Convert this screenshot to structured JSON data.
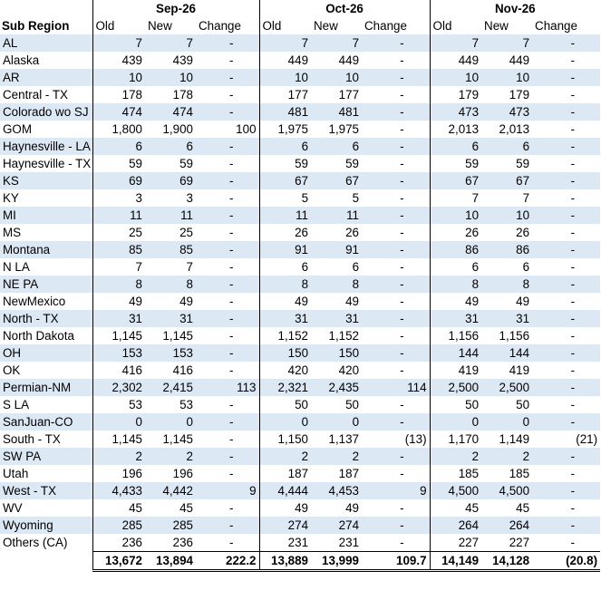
{
  "header": {
    "sub_region_label": "Sub Region",
    "months": [
      "Sep-26",
      "Oct-26",
      "Nov-26"
    ],
    "columns": [
      "Old",
      "New",
      "Change"
    ]
  },
  "rows": [
    {
      "region": "AL",
      "sep": [
        "7",
        "7",
        "-"
      ],
      "oct": [
        "7",
        "7",
        "-"
      ],
      "nov": [
        "7",
        "7",
        "-"
      ]
    },
    {
      "region": "Alaska",
      "sep": [
        "439",
        "439",
        "-"
      ],
      "oct": [
        "449",
        "449",
        "-"
      ],
      "nov": [
        "449",
        "449",
        "-"
      ]
    },
    {
      "region": "AR",
      "sep": [
        "10",
        "10",
        "-"
      ],
      "oct": [
        "10",
        "10",
        "-"
      ],
      "nov": [
        "10",
        "10",
        "-"
      ]
    },
    {
      "region": "Central - TX",
      "sep": [
        "178",
        "178",
        "-"
      ],
      "oct": [
        "177",
        "177",
        "-"
      ],
      "nov": [
        "179",
        "179",
        "-"
      ]
    },
    {
      "region": "Colorado wo SJ",
      "sep": [
        "474",
        "474",
        "-"
      ],
      "oct": [
        "481",
        "481",
        "-"
      ],
      "nov": [
        "473",
        "473",
        "-"
      ]
    },
    {
      "region": "GOM",
      "sep": [
        "1,800",
        "1,900",
        "100"
      ],
      "oct": [
        "1,975",
        "1,975",
        "-"
      ],
      "nov": [
        "2,013",
        "2,013",
        "-"
      ]
    },
    {
      "region": "Haynesville - LA",
      "sep": [
        "6",
        "6",
        "-"
      ],
      "oct": [
        "6",
        "6",
        "-"
      ],
      "nov": [
        "6",
        "6",
        "-"
      ]
    },
    {
      "region": "Haynesville - TX",
      "sep": [
        "59",
        "59",
        "-"
      ],
      "oct": [
        "59",
        "59",
        "-"
      ],
      "nov": [
        "59",
        "59",
        "-"
      ]
    },
    {
      "region": "KS",
      "sep": [
        "69",
        "69",
        "-"
      ],
      "oct": [
        "67",
        "67",
        "-"
      ],
      "nov": [
        "67",
        "67",
        "-"
      ]
    },
    {
      "region": "KY",
      "sep": [
        "3",
        "3",
        "-"
      ],
      "oct": [
        "5",
        "5",
        "-"
      ],
      "nov": [
        "7",
        "7",
        "-"
      ]
    },
    {
      "region": "MI",
      "sep": [
        "11",
        "11",
        "-"
      ],
      "oct": [
        "11",
        "11",
        "-"
      ],
      "nov": [
        "10",
        "10",
        "-"
      ]
    },
    {
      "region": "MS",
      "sep": [
        "25",
        "25",
        "-"
      ],
      "oct": [
        "26",
        "26",
        "-"
      ],
      "nov": [
        "26",
        "26",
        "-"
      ]
    },
    {
      "region": "Montana",
      "sep": [
        "85",
        "85",
        "-"
      ],
      "oct": [
        "91",
        "91",
        "-"
      ],
      "nov": [
        "86",
        "86",
        "-"
      ]
    },
    {
      "region": "N LA",
      "sep": [
        "7",
        "7",
        "-"
      ],
      "oct": [
        "6",
        "6",
        "-"
      ],
      "nov": [
        "6",
        "6",
        "-"
      ]
    },
    {
      "region": "NE PA",
      "sep": [
        "8",
        "8",
        "-"
      ],
      "oct": [
        "8",
        "8",
        "-"
      ],
      "nov": [
        "8",
        "8",
        "-"
      ]
    },
    {
      "region": "NewMexico",
      "sep": [
        "49",
        "49",
        "-"
      ],
      "oct": [
        "49",
        "49",
        "-"
      ],
      "nov": [
        "49",
        "49",
        "-"
      ]
    },
    {
      "region": "North - TX",
      "sep": [
        "31",
        "31",
        "-"
      ],
      "oct": [
        "31",
        "31",
        "-"
      ],
      "nov": [
        "31",
        "31",
        "-"
      ]
    },
    {
      "region": "North Dakota",
      "sep": [
        "1,145",
        "1,145",
        "-"
      ],
      "oct": [
        "1,152",
        "1,152",
        "-"
      ],
      "nov": [
        "1,156",
        "1,156",
        "-"
      ]
    },
    {
      "region": "OH",
      "sep": [
        "153",
        "153",
        "-"
      ],
      "oct": [
        "150",
        "150",
        "-"
      ],
      "nov": [
        "144",
        "144",
        "-"
      ]
    },
    {
      "region": "OK",
      "sep": [
        "416",
        "416",
        "-"
      ],
      "oct": [
        "420",
        "420",
        "-"
      ],
      "nov": [
        "419",
        "419",
        "-"
      ]
    },
    {
      "region": "Permian-NM",
      "sep": [
        "2,302",
        "2,415",
        "113"
      ],
      "oct": [
        "2,321",
        "2,435",
        "114"
      ],
      "nov": [
        "2,500",
        "2,500",
        "-"
      ]
    },
    {
      "region": "S LA",
      "sep": [
        "53",
        "53",
        "-"
      ],
      "oct": [
        "50",
        "50",
        "-"
      ],
      "nov": [
        "50",
        "50",
        "-"
      ]
    },
    {
      "region": "SanJuan-CO",
      "sep": [
        "0",
        "0",
        "-"
      ],
      "oct": [
        "0",
        "0",
        "-"
      ],
      "nov": [
        "0",
        "0",
        "-"
      ]
    },
    {
      "region": "South - TX",
      "sep": [
        "1,145",
        "1,145",
        "-"
      ],
      "oct": [
        "1,150",
        "1,137",
        "(13)"
      ],
      "nov": [
        "1,170",
        "1,149",
        "(21)"
      ]
    },
    {
      "region": "SW PA",
      "sep": [
        "2",
        "2",
        "-"
      ],
      "oct": [
        "2",
        "2",
        "-"
      ],
      "nov": [
        "2",
        "2",
        "-"
      ]
    },
    {
      "region": "Utah",
      "sep": [
        "196",
        "196",
        "-"
      ],
      "oct": [
        "187",
        "187",
        "-"
      ],
      "nov": [
        "185",
        "185",
        "-"
      ]
    },
    {
      "region": "West - TX",
      "sep": [
        "4,433",
        "4,442",
        "9"
      ],
      "oct": [
        "4,444",
        "4,453",
        "9"
      ],
      "nov": [
        "4,500",
        "4,500",
        "-"
      ]
    },
    {
      "region": "WV",
      "sep": [
        "45",
        "45",
        "-"
      ],
      "oct": [
        "49",
        "49",
        "-"
      ],
      "nov": [
        "45",
        "45",
        "-"
      ]
    },
    {
      "region": "Wyoming",
      "sep": [
        "285",
        "285",
        "-"
      ],
      "oct": [
        "274",
        "274",
        "-"
      ],
      "nov": [
        "264",
        "264",
        "-"
      ]
    },
    {
      "region": "Others (CA)",
      "sep": [
        "236",
        "236",
        "-"
      ],
      "oct": [
        "231",
        "231",
        "-"
      ],
      "nov": [
        "227",
        "227",
        "-"
      ]
    }
  ],
  "totals": {
    "sep": [
      "13,672",
      "13,894",
      "222.2"
    ],
    "oct": [
      "13,889",
      "13,999",
      "109.7"
    ],
    "nov": [
      "14,149",
      "14,128",
      "(20.8)"
    ]
  },
  "colors": {
    "band": "#dde8f5",
    "border": "#000000"
  }
}
